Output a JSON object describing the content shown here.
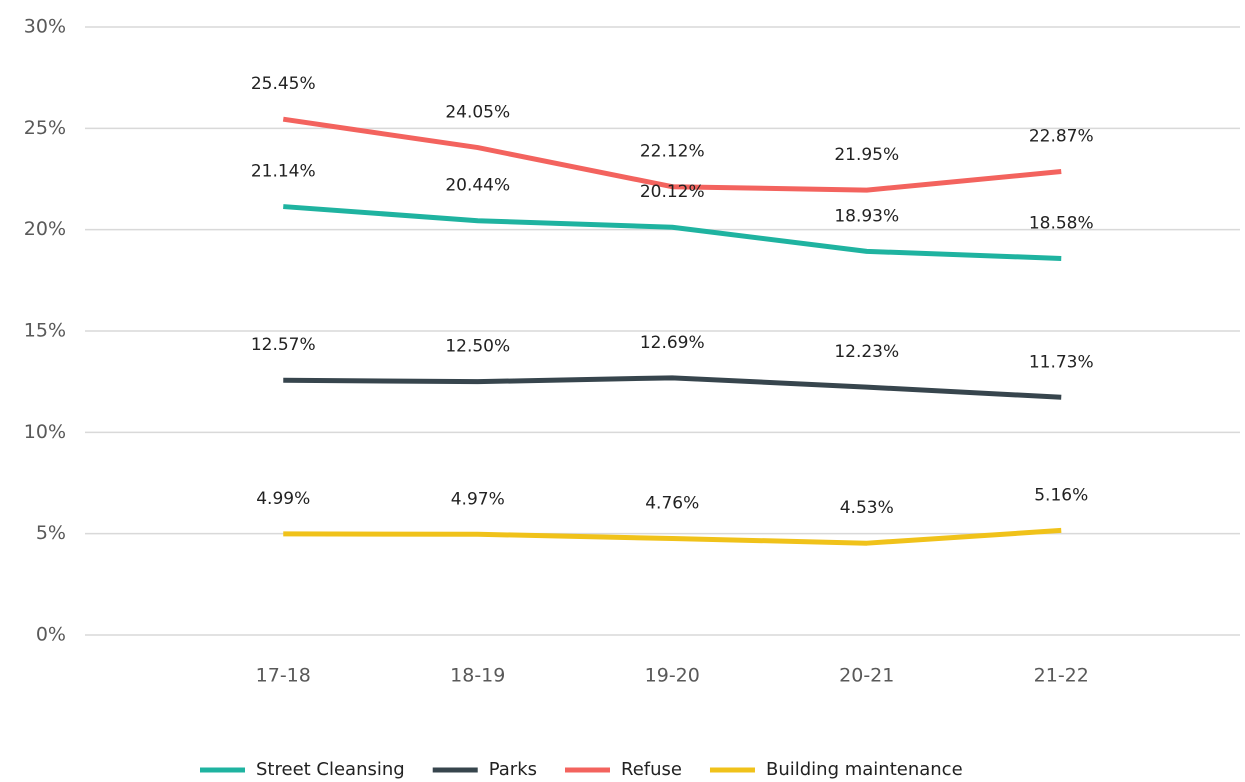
{
  "chart_data": {
    "type": "line",
    "categories": [
      "17-18",
      "18-19",
      "19-20",
      "20-21",
      "21-22"
    ],
    "series": [
      {
        "name": "Street Cleansing",
        "color": "#1fb3a0",
        "values": [
          21.14,
          20.44,
          20.12,
          18.93,
          18.58
        ],
        "value_labels": [
          "21.14%",
          "20.44%",
          "20.12%",
          "18.93%",
          "18.58%"
        ]
      },
      {
        "name": "Parks",
        "color": "#37454d",
        "values": [
          12.57,
          12.5,
          12.69,
          12.23,
          11.73
        ],
        "value_labels": [
          "12.57%",
          "12.50%",
          "12.69%",
          "12.23%",
          "11.73%"
        ]
      },
      {
        "name": "Refuse",
        "color": "#f3635e",
        "values": [
          25.45,
          24.05,
          22.12,
          21.95,
          22.87
        ],
        "value_labels": [
          "25.45%",
          "24.05%",
          "22.12%",
          "21.95%",
          "22.87%"
        ]
      },
      {
        "name": "Building maintenance",
        "color": "#f0c21a",
        "values": [
          4.99,
          4.97,
          4.76,
          4.53,
          5.16
        ],
        "value_labels": [
          "4.99%",
          "4.97%",
          "4.76%",
          "4.53%",
          "5.16%"
        ]
      }
    ],
    "ylim": [
      0,
      30
    ],
    "yticks": [
      {
        "value": 0,
        "label": "0%"
      },
      {
        "value": 5,
        "label": "5%"
      },
      {
        "value": 10,
        "label": "10%"
      },
      {
        "value": 15,
        "label": "15%"
      },
      {
        "value": 20,
        "label": "20%"
      },
      {
        "value": 25,
        "label": "25%"
      },
      {
        "value": 30,
        "label": "30%"
      }
    ],
    "grid": true,
    "legend": "bottom"
  }
}
